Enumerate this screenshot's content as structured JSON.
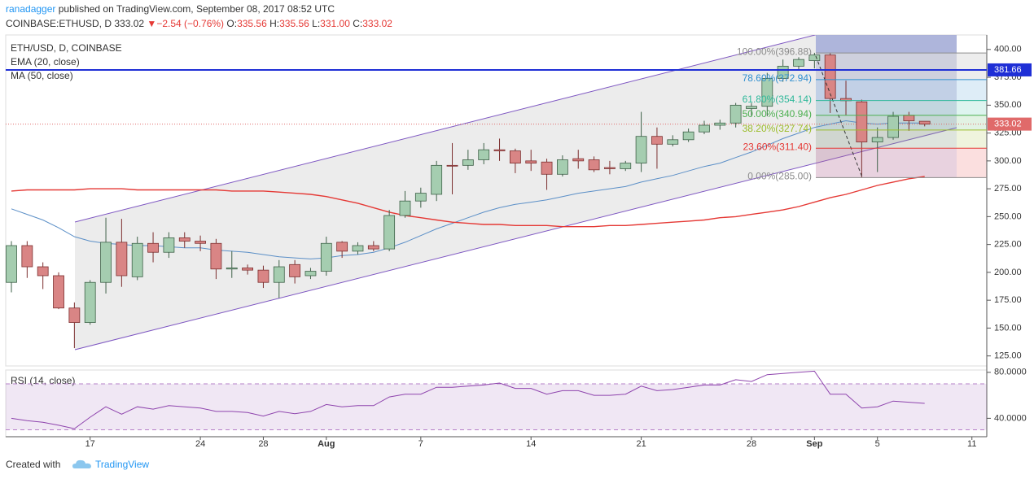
{
  "header": {
    "author": "ranadagger",
    "published": " published on TradingView.com, September 08, 2017 08:52 UTC",
    "symbol": "COINBASE:ETHUSD, D",
    "price": "333.02",
    "arrow": "▼",
    "change": "−2.54 (−0.76%)",
    "ohlc": [
      {
        "key": "O:",
        "value": "335.56"
      },
      {
        "key": "H:",
        "value": "335.56"
      },
      {
        "key": "L:",
        "value": "331.00"
      },
      {
        "key": "C:",
        "value": "333.02"
      }
    ]
  },
  "footer": {
    "created": "Created with",
    "brand": "TradingView"
  },
  "chart_data": [
    {
      "type": "candlestick",
      "title": "ETH/USD, D, COINBASE",
      "categories": [
        null,
        null,
        null,
        null,
        null,
        "17",
        null,
        null,
        null,
        null,
        null,
        null,
        "24",
        null,
        null,
        null,
        "28",
        null,
        null,
        null,
        "Aug",
        null,
        null,
        null,
        null,
        null,
        "7",
        null,
        null,
        null,
        null,
        null,
        null,
        "14",
        null,
        null,
        null,
        null,
        null,
        null,
        "21",
        null,
        null,
        null,
        null,
        null,
        null,
        "28",
        null,
        null,
        null,
        "Sep",
        null,
        null,
        null,
        "5",
        null,
        null,
        null,
        null,
        null,
        "11",
        null
      ],
      "open": [
        191,
        224,
        205,
        197,
        168,
        155,
        191,
        227,
        196,
        226,
        218,
        231,
        228,
        226,
        203,
        204,
        202,
        191,
        207,
        197,
        201,
        227,
        219,
        224,
        221,
        251,
        264,
        270,
        296,
        296,
        301,
        310,
        309,
        300,
        299,
        288,
        302,
        301,
        294,
        293,
        298,
        322,
        315,
        319,
        326,
        332,
        334,
        347,
        349,
        374,
        385,
        390,
        395,
        356,
        353,
        317,
        321,
        341,
        335.56,
        null,
        null,
        null,
        null
      ],
      "high": [
        228,
        228,
        209,
        200,
        173,
        193,
        249,
        248,
        232,
        236,
        236,
        236,
        233,
        230,
        219,
        207,
        206,
        211,
        211,
        204,
        232,
        228,
        227,
        228,
        256,
        273,
        276,
        300,
        316,
        310,
        316,
        320,
        311,
        310,
        302,
        305,
        310,
        304,
        300,
        300,
        344,
        330,
        323,
        329,
        336,
        337,
        352,
        352,
        379,
        391,
        393,
        397,
        397,
        372,
        355,
        330,
        344,
        344,
        335.56,
        null,
        null,
        null,
        null
      ],
      "low": [
        182,
        195,
        185,
        167,
        132,
        153,
        181,
        187,
        193,
        209,
        213,
        222,
        219,
        194,
        195,
        198,
        186,
        177,
        190,
        194,
        197,
        213,
        216,
        219,
        219,
        249,
        258,
        264,
        270,
        292,
        297,
        300,
        289,
        291,
        274,
        286,
        293,
        290,
        288,
        291,
        290,
        293,
        313,
        317,
        324,
        328,
        330,
        340,
        340,
        371,
        381,
        383,
        343,
        341,
        285,
        290,
        319,
        327,
        331,
        null,
        null,
        null,
        null
      ],
      "close": [
        224,
        205,
        197,
        168,
        155,
        191,
        227,
        197,
        226,
        218,
        231,
        228,
        226,
        203,
        204,
        202,
        191,
        205,
        196,
        201,
        226,
        219,
        224,
        221,
        251,
        264,
        271,
        296,
        295.5,
        301,
        310,
        309,
        298,
        298,
        288,
        301,
        300,
        292,
        293,
        298,
        322,
        315,
        319,
        326,
        332,
        334,
        350,
        349,
        374,
        385,
        391,
        395,
        356,
        354,
        317,
        321,
        340,
        336,
        333.02,
        null,
        null,
        null,
        null
      ],
      "up_color": "#a5cdb0",
      "down_color": "#d98585",
      "series": [
        {
          "name": "EMA (20, close)",
          "color": "#5b8fc7",
          "values": [
            257,
            252,
            247,
            240,
            232,
            228,
            226,
            225,
            224,
            224,
            223,
            222,
            222,
            220,
            219,
            218,
            216,
            214,
            213,
            212,
            213,
            215,
            216,
            218,
            222,
            227,
            233,
            239,
            244,
            249,
            254,
            258,
            261,
            263,
            265,
            268,
            271,
            273,
            275,
            277,
            281,
            284,
            287,
            291,
            295,
            298,
            303,
            308,
            314,
            320,
            325,
            330,
            333,
            336,
            334,
            333,
            334,
            334,
            334,
            null,
            null,
            null,
            null
          ]
        },
        {
          "name": "MA (50, close)",
          "color": "#e53935",
          "values": [
            273,
            274,
            274,
            274,
            274,
            275,
            275,
            275,
            274,
            274,
            274,
            274,
            274,
            274,
            273,
            273,
            273,
            272,
            271,
            270,
            268,
            265,
            262,
            258,
            254,
            251,
            249,
            247,
            245,
            244,
            243,
            243,
            242,
            242,
            242,
            241,
            241,
            241,
            242,
            242,
            243,
            244,
            245,
            246,
            247,
            249,
            250,
            252,
            254,
            256,
            259,
            263,
            267,
            270,
            274,
            278,
            281,
            284,
            286,
            null,
            null,
            null,
            null
          ]
        }
      ],
      "fibonacci": [
        {
          "label": "100.00%(396.88)",
          "value": 396.88,
          "color": "#8c8c8c"
        },
        {
          "label": "78.60%(372.94)",
          "value": 372.94,
          "color": "#2f8fd0"
        },
        {
          "label": "61.80%(354.14)",
          "value": 354.14,
          "color": "#2fb89a"
        },
        {
          "label": "50.00%(340.94)",
          "value": 340.94,
          "color": "#4caf50"
        },
        {
          "label": "38.20%(327.74)",
          "value": 327.74,
          "color": "#9cbd2b"
        },
        {
          "label": "23.60%(311.40)",
          "value": 311.4,
          "color": "#e53935"
        },
        {
          "label": "0.00%(285.00)",
          "value": 285,
          "color": "#8c8c8c"
        }
      ],
      "horizontal_line": {
        "value": 381.66,
        "label": "381.66",
        "color": "#1f2fd6"
      },
      "last_price": {
        "value": 333.02,
        "label": "333.02",
        "color": "#e06a6a"
      },
      "ylim": [
        116,
        413
      ],
      "yticks": [
        {
          "value": 125,
          "label": "125.00"
        },
        {
          "value": 150,
          "label": "150.00"
        },
        {
          "value": 175,
          "label": "175.00"
        },
        {
          "value": 200,
          "label": "200.00"
        },
        {
          "value": 225,
          "label": "225.00"
        },
        {
          "value": 250,
          "label": "250.00"
        },
        {
          "value": 275,
          "label": "275.00"
        },
        {
          "value": 300,
          "label": "300.00"
        },
        {
          "value": 325,
          "label": "325.00"
        },
        {
          "value": 350,
          "label": "350.00"
        },
        {
          "value": 375,
          "label": "375.00"
        },
        {
          "value": 400,
          "label": "400.00"
        }
      ]
    },
    {
      "type": "line",
      "title": "RSI (14, close)",
      "color": "#8e44ad",
      "values": [
        40,
        38,
        36.6,
        34,
        31,
        41,
        50,
        43.6,
        50,
        48,
        51,
        50,
        49,
        46,
        46,
        45,
        42,
        46,
        44,
        46,
        52,
        50,
        51,
        51,
        58.6,
        61,
        61,
        67,
        67,
        68,
        69,
        70.7,
        66,
        66,
        61,
        64,
        64,
        60,
        60,
        61,
        68,
        64,
        65,
        67,
        69,
        69,
        73.6,
        72,
        78,
        79,
        80,
        81,
        61,
        61,
        49,
        50,
        55,
        54,
        53,
        null,
        null,
        null,
        null
      ],
      "band": [
        30,
        70
      ],
      "ylim": [
        24,
        82
      ],
      "yticks": [
        {
          "value": 40,
          "label": "40.0000"
        },
        {
          "value": 80,
          "label": "80.0000"
        }
      ]
    }
  ]
}
